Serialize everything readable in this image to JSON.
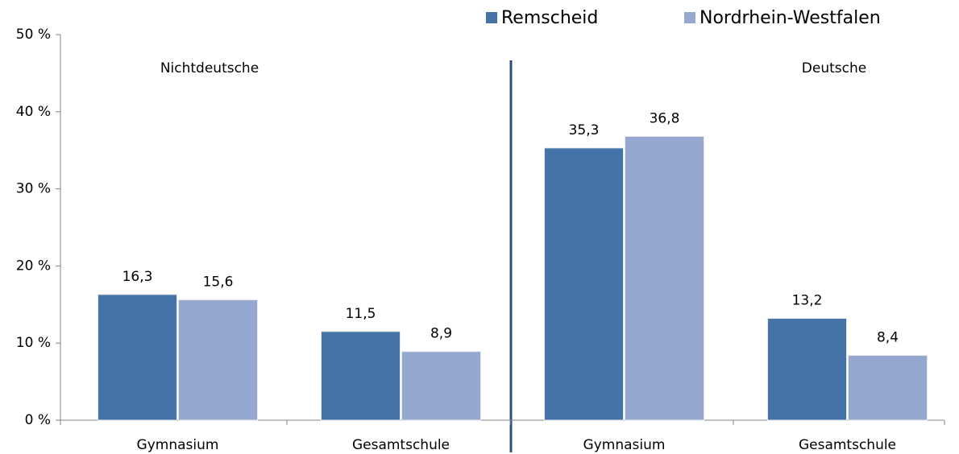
{
  "chart_data": {
    "type": "bar",
    "categories": [
      "Gymnasium",
      "Gesamtschule",
      "Gymnasium",
      "Gesamtschule"
    ],
    "groups": [
      "Nichtdeutsche",
      "Deutsche"
    ],
    "series": [
      {
        "name": "Remscheid",
        "color": "#4572a7",
        "values": [
          16.3,
          11.5,
          35.3,
          13.2
        ],
        "value_labels": [
          "16,3",
          "11,5",
          "35,3",
          "13,2"
        ]
      },
      {
        "name": "Nordrhein-Westfalen",
        "color": "#95a8d0",
        "values": [
          15.6,
          8.9,
          36.8,
          8.4
        ],
        "value_labels": [
          "15,6",
          "8,9",
          "36,8",
          "8,4"
        ]
      }
    ],
    "ylim": [
      0,
      50
    ],
    "yticks": [
      {
        "value": 0,
        "label": "0 %"
      },
      {
        "value": 10,
        "label": "10 %"
      },
      {
        "value": 20,
        "label": "20 %"
      },
      {
        "value": 30,
        "label": "30 %"
      },
      {
        "value": 40,
        "label": "40 %"
      },
      {
        "value": 50,
        "label": "50 %"
      }
    ],
    "legend": "top-right"
  }
}
